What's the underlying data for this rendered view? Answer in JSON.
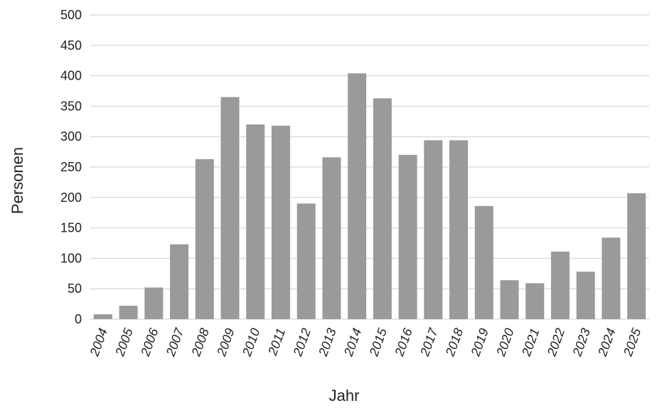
{
  "chart_data": {
    "type": "bar",
    "title": "",
    "xlabel": "Jahr",
    "ylabel": "Personen",
    "categories": [
      "2004",
      "2005",
      "2006",
      "2007",
      "2008",
      "2009",
      "2010",
      "2011",
      "2012",
      "2013",
      "2014",
      "2015",
      "2016",
      "2017",
      "2018",
      "2019",
      "2020",
      "2021",
      "2022",
      "2023",
      "2024",
      "2025"
    ],
    "values": [
      8,
      22,
      52,
      123,
      263,
      365,
      320,
      318,
      190,
      266,
      404,
      363,
      270,
      294,
      294,
      186,
      64,
      59,
      111,
      78,
      134,
      207
    ],
    "ylim": [
      0,
      500
    ],
    "yticks": [
      0,
      50,
      100,
      150,
      200,
      250,
      300,
      350,
      400,
      450,
      500
    ],
    "grid": true,
    "colors": {
      "bar": "#9a9a99",
      "grid": "#cfcfcf"
    }
  }
}
